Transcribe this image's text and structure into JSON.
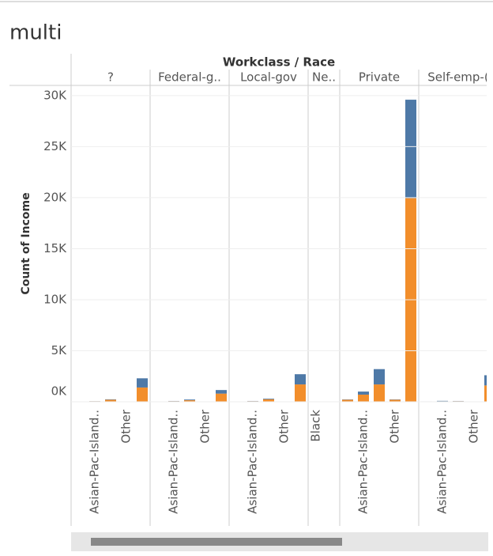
{
  "chart_data": {
    "type": "bar",
    "stacked": true,
    "title": "multi",
    "header": "Workclass / Race",
    "y_label": "Count of Income",
    "ylim": [
      0,
      31000
    ],
    "yticks": [
      {
        "value": 0,
        "label": "0K"
      },
      {
        "value": 5000,
        "label": "5K"
      },
      {
        "value": 10000,
        "label": "10K"
      },
      {
        "value": 15000,
        "label": "15K"
      },
      {
        "value": 20000,
        "label": "20K"
      },
      {
        "value": 25000,
        "label": "25K"
      },
      {
        "value": 30000,
        "label": "30K"
      }
    ],
    "grid": true,
    "panels": [
      {
        "label": "?",
        "categories": [
          null,
          "Asian-Pac-Island..",
          null,
          "Other",
          null
        ],
        "series": [
          {
            "color": "#f28e2b",
            "values": [
              20,
              50,
              200,
              10,
              1400
            ]
          },
          {
            "color": "#4e79a7",
            "values": [
              2,
              10,
              40,
              1,
              900
            ]
          }
        ]
      },
      {
        "label": "Federal-g..",
        "categories": [
          null,
          "Asian-Pac-Island..",
          null,
          "Other",
          null
        ],
        "series": [
          {
            "color": "#f28e2b",
            "values": [
              30,
              60,
              150,
              10,
              800
            ]
          },
          {
            "color": "#4e79a7",
            "values": [
              5,
              20,
              70,
              2,
              350
            ]
          }
        ]
      },
      {
        "label": "Local-gov",
        "categories": [
          null,
          "Asian-Pac-Island..",
          null,
          "Other",
          null
        ],
        "series": [
          {
            "color": "#f28e2b",
            "values": [
              30,
              60,
              250,
              10,
              1700
            ]
          },
          {
            "color": "#4e79a7",
            "values": [
              5,
              20,
              60,
              2,
              1000
            ]
          }
        ]
      },
      {
        "label": "Ne..",
        "categories": [
          "Black",
          null
        ],
        "series": [
          {
            "color": "#f28e2b",
            "values": [
              1,
              5
            ]
          },
          {
            "color": "#4e79a7",
            "values": [
              0,
              0
            ]
          }
        ]
      },
      {
        "label": "Private",
        "categories": [
          null,
          "Asian-Pac-Island..",
          null,
          "Other",
          null
        ],
        "series": [
          {
            "color": "#f28e2b",
            "values": [
              200,
              700,
              1700,
              200,
              19950
            ]
          },
          {
            "color": "#4e79a7",
            "values": [
              30,
              300,
              1500,
              30,
              9650
            ]
          }
        ]
      },
      {
        "label": "Self-emp-(",
        "categories": [
          null,
          "Asian-Pac-Island..",
          null,
          "Other",
          null
        ],
        "series": [
          {
            "color": "#f28e2b",
            "values": [
              30,
              50,
              60,
              10,
              1600
            ]
          },
          {
            "color": "#4e79a7",
            "values": [
              10,
              40,
              20,
              5,
              1000
            ]
          }
        ]
      }
    ]
  }
}
